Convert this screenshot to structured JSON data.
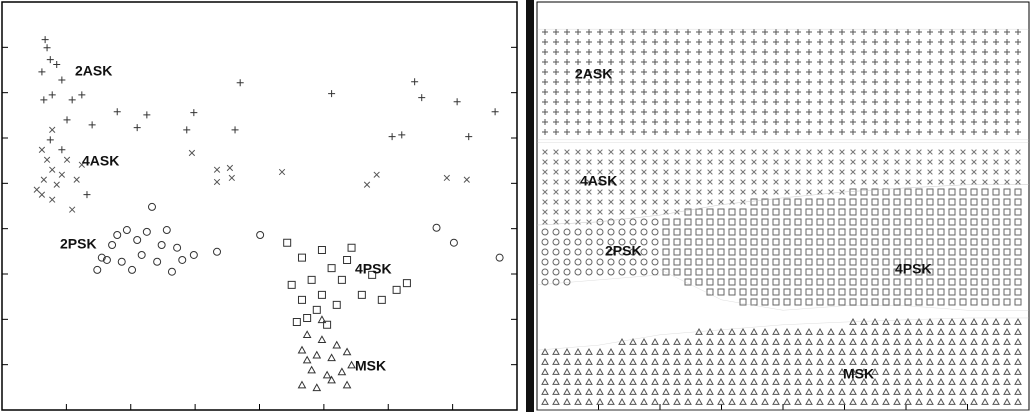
{
  "chart_data": [
    {
      "type": "scatter",
      "xlim": [
        0,
        8
      ],
      "ylim": [
        0,
        9
      ],
      "xticks": [
        1,
        2,
        3,
        4,
        5,
        6,
        7
      ],
      "yticks": [
        1,
        2,
        3,
        4,
        5,
        6,
        7,
        8
      ],
      "series": [
        {
          "name": "2ASK",
          "marker": "plus",
          "color": "#333333",
          "x": [
            0.67,
            0.7,
            0.75,
            0.62,
            0.85,
            0.93,
            0.78,
            0.65,
            1.09,
            1.24,
            1.01,
            1.4,
            1.79,
            2.1,
            2.25,
            2.87,
            2.98,
            3.62,
            3.7,
            5.12,
            6.41,
            6.52,
            7.07,
            6.21,
            6.06,
            7.25,
            7.66,
            1.32,
            0.75,
            0.93
          ],
          "y": [
            8.17,
            7.99,
            7.73,
            7.46,
            7.62,
            7.28,
            6.95,
            6.84,
            6.84,
            6.95,
            6.4,
            6.29,
            6.58,
            6.23,
            6.51,
            6.18,
            6.56,
            6.18,
            7.22,
            6.98,
            7.24,
            6.89,
            6.8,
            6.07,
            6.03,
            6.03,
            6.58,
            4.75,
            5.96,
            5.74
          ]
        },
        {
          "name": "4ASK",
          "marker": "cross",
          "color": "#555555",
          "x": [
            0.62,
            0.7,
            0.78,
            0.65,
            0.85,
            0.93,
            1.01,
            1.16,
            0.62,
            0.78,
            0.54,
            1.09,
            2.95,
            3.34,
            3.54,
            3.34,
            3.57,
            4.35,
            5.67,
            5.82,
            6.91,
            7.22,
            0.78,
            1.24
          ],
          "y": [
            5.74,
            5.52,
            5.3,
            5.08,
            4.97,
            5.19,
            5.52,
            5.08,
            4.75,
            4.64,
            4.86,
            4.42,
            5.67,
            5.3,
            5.34,
            5.03,
            5.12,
            5.25,
            4.97,
            5.19,
            5.12,
            5.08,
            6.18,
            5.41
          ]
        },
        {
          "name": "2PSK",
          "marker": "circle",
          "color": "#333333",
          "x": [
            2.33,
            1.94,
            2.1,
            1.71,
            1.55,
            1.86,
            2.17,
            2.48,
            2.72,
            1.48,
            2.02,
            2.41,
            2.8,
            2.56,
            1.79,
            3.34,
            4.01,
            2.98,
            2.64,
            6.75,
            7.02,
            7.73,
            1.63,
            2.25
          ],
          "y": [
            4.48,
            3.97,
            3.75,
            3.64,
            3.36,
            3.27,
            3.42,
            3.64,
            3.58,
            3.09,
            3.09,
            3.27,
            3.31,
            3.97,
            3.86,
            3.49,
            3.86,
            3.42,
            3.05,
            4.02,
            3.69,
            3.36,
            3.31,
            3.93
          ]
        },
        {
          "name": "4PSK",
          "marker": "square",
          "color": "#333333",
          "x": [
            4.43,
            4.66,
            4.97,
            5.36,
            5.28,
            4.81,
            4.5,
            4.66,
            4.97,
            5.2,
            4.74,
            5.05,
            5.59,
            5.75,
            6.13,
            6.29,
            5.9,
            5.43,
            5.12,
            4.89,
            4.58
          ],
          "y": [
            3.69,
            3.36,
            3.53,
            3.31,
            2.87,
            2.87,
            2.76,
            2.43,
            2.54,
            2.32,
            2.03,
            1.88,
            2.54,
            2.98,
            2.65,
            2.8,
            2.43,
            3.58,
            3.13,
            2.21,
            1.94
          ]
        },
        {
          "name": "MSK",
          "marker": "triangle",
          "color": "#333333",
          "x": [
            4.74,
            4.97,
            5.2,
            4.66,
            4.89,
            5.12,
            5.36,
            4.81,
            5.05,
            5.28,
            4.66,
            4.89,
            5.12,
            5.36,
            4.74,
            4.97,
            5.43
          ],
          "y": [
            1.66,
            1.55,
            1.43,
            1.32,
            1.21,
            1.15,
            1.28,
            0.88,
            0.77,
            0.84,
            0.55,
            0.49,
            0.66,
            0.55,
            1.1,
            1.99,
            0.99
          ]
        }
      ]
    },
    {
      "type": "region",
      "xlim": [
        0,
        8
      ],
      "ylim": [
        0,
        9
      ],
      "xticks": [
        1,
        2,
        3,
        4,
        5,
        6,
        7
      ],
      "x": [
        0,
        1,
        2,
        3,
        4,
        5,
        6,
        7,
        8
      ],
      "series": [
        {
          "name": "2ASK",
          "marker": "plus",
          "color": "#555555",
          "lower": [
            5.96,
            5.96,
            5.96,
            5.96,
            5.96,
            5.96,
            5.96,
            5.96,
            5.96
          ],
          "upper": [
            8.4,
            8.4,
            8.4,
            8.4,
            8.4,
            8.4,
            8.4,
            8.4,
            8.4
          ]
        },
        {
          "name": "4ASK",
          "marker": "cross",
          "color": "#777777",
          "lower": [
            4.08,
            4.15,
            4.3,
            4.53,
            4.68,
            4.81,
            4.9,
            4.97,
            4.97
          ],
          "upper": [
            5.9,
            5.9,
            5.9,
            5.9,
            5.9,
            5.9,
            5.9,
            5.9,
            5.9
          ]
        },
        {
          "name": "2PSK",
          "marker": "circle",
          "color": "#666666",
          "lower": [
            2.76,
            2.87,
            2.98,
            null,
            null,
            null,
            null,
            null,
            null
          ],
          "upper": [
            4.08,
            4.15,
            4.3,
            null,
            null,
            null,
            null,
            null,
            null
          ]
        },
        {
          "name": "4PSK",
          "marker": "square",
          "color": "#666666",
          "lower": [
            null,
            null,
            3.1,
            2.43,
            2.2,
            2.3,
            2.3,
            2.2,
            2.2
          ],
          "upper": [
            null,
            null,
            4.3,
            4.53,
            4.68,
            4.81,
            4.9,
            4.97,
            4.97
          ]
        },
        {
          "name": "MSK",
          "marker": "triangle",
          "color": "#555555",
          "lower": [
            0,
            0,
            0,
            0,
            0,
            0,
            0,
            0,
            0
          ],
          "upper": [
            1.32,
            1.43,
            1.66,
            1.77,
            1.88,
            1.94,
            1.99,
            2.03,
            2.03
          ]
        }
      ]
    }
  ]
}
